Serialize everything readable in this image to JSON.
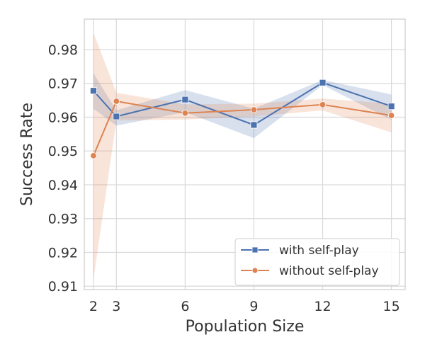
{
  "chart_data": {
    "type": "line",
    "xlabel": "Population Size",
    "ylabel": "Success Rate",
    "xlim": [
      1.6,
      15.6
    ],
    "ylim": [
      0.909,
      0.989
    ],
    "x_ticks": [
      2,
      3,
      6,
      9,
      12,
      15
    ],
    "y_ticks": [
      0.91,
      0.92,
      0.93,
      0.94,
      0.95,
      0.96,
      0.97,
      0.98
    ],
    "grid": true,
    "legend_position": "bottom-right",
    "series": [
      {
        "name": "with self-play",
        "color": "#4c72b0",
        "marker": "square",
        "x": [
          2,
          3,
          6,
          9,
          12,
          15
        ],
        "y": [
          0.9678,
          0.9602,
          0.9652,
          0.9577,
          0.9702,
          0.9632
        ],
        "ci_low": [
          0.9625,
          0.9575,
          0.9615,
          0.9538,
          0.9695,
          0.9592
        ],
        "ci_high": [
          0.973,
          0.962,
          0.968,
          0.9625,
          0.971,
          0.9667
        ]
      },
      {
        "name": "without self-play",
        "color": "#dd8452",
        "marker": "circle",
        "x": [
          2,
          3,
          6,
          9,
          12,
          15
        ],
        "y": [
          0.9486,
          0.9647,
          0.9612,
          0.9622,
          0.9637,
          0.9605
        ],
        "ci_low": [
          0.912,
          0.959,
          0.9593,
          0.9602,
          0.962,
          0.9555
        ],
        "ci_high": [
          0.985,
          0.9672,
          0.9638,
          0.964,
          0.9655,
          0.964
        ]
      }
    ]
  }
}
